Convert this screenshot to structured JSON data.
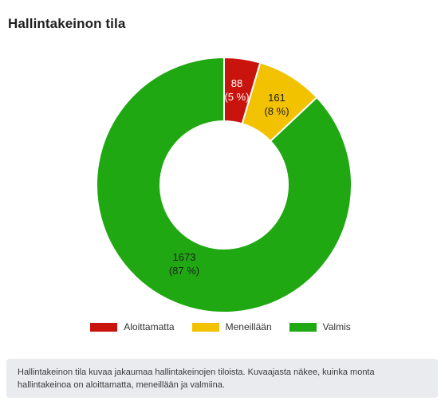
{
  "header": {
    "title": "Hallintakeinon tila"
  },
  "chart_data": {
    "type": "pie",
    "variant": "donut",
    "title": "Hallintakeinon tila",
    "slices": [
      {
        "label": "Aloittamatta",
        "value": 88,
        "percent_label": "(5 %)",
        "color": "#c8140c"
      },
      {
        "label": "Meneillään",
        "value": 161,
        "percent_label": "(8 %)",
        "color": "#f2c200"
      },
      {
        "label": "Valmis",
        "value": 1673,
        "percent_label": "(87 %)",
        "color": "#20a812"
      }
    ],
    "legend_position": "bottom"
  },
  "description": "Hallintakeinon tila kuvaa jakaumaa hallintakeinojen tiloista. Kuvaajasta näkee, kuinka monta hallintakeinoa on aloittamatta, meneillään ja valmiina."
}
